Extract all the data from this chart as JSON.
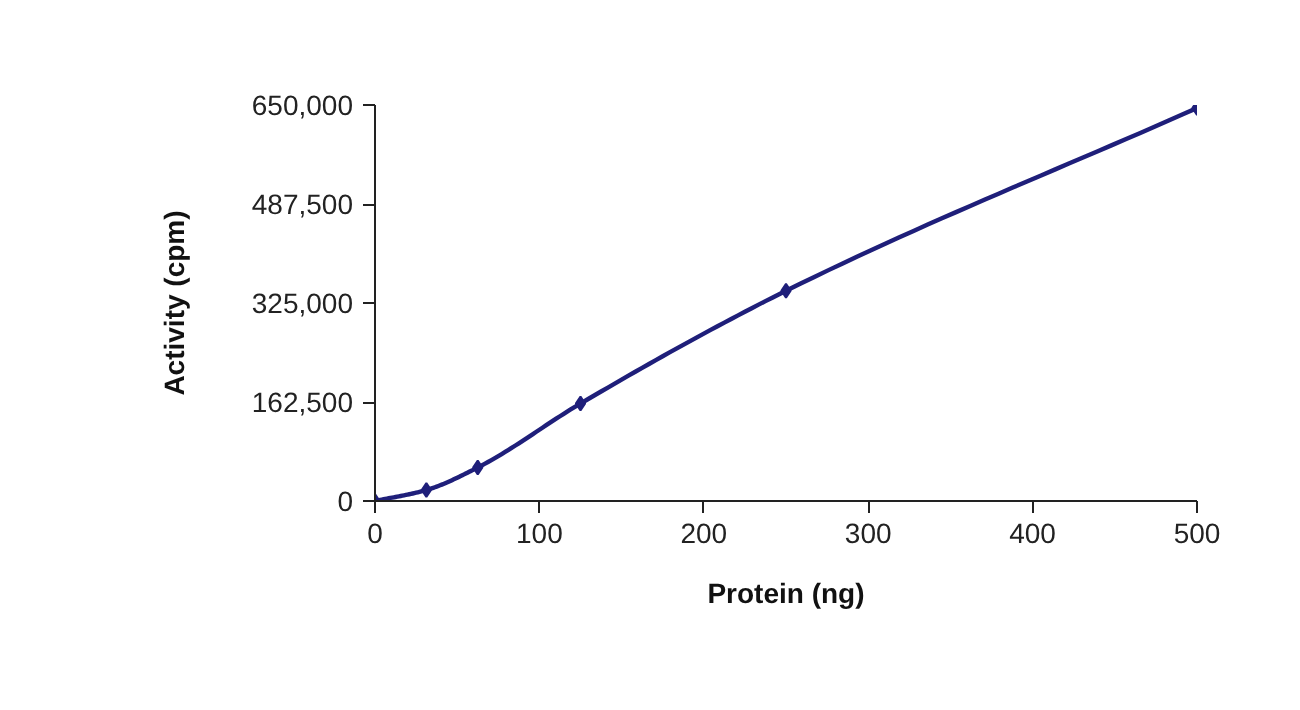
{
  "chart_data": {
    "type": "line",
    "xlabel": "Protein (ng)",
    "ylabel": "Activity (cpm)",
    "x": [
      0,
      31.25,
      62.5,
      125,
      250,
      500
    ],
    "series": [
      {
        "color": "#1f1f7a",
        "values": [
          0,
          18000,
          55000,
          160000,
          345000,
          645000
        ]
      }
    ],
    "xlim": [
      0,
      500
    ],
    "xticks": [
      0,
      100,
      200,
      300,
      400,
      500
    ],
    "ylim": [
      0,
      650000
    ],
    "yticks": [
      {
        "value": 0,
        "label": "0"
      },
      {
        "value": 162500,
        "label": "162,500"
      },
      {
        "value": 325000,
        "label": "325,000"
      },
      {
        "value": 487500,
        "label": "487,500"
      },
      {
        "value": 650000,
        "label": "650,000"
      }
    ],
    "grid": false,
    "marker": "diamond",
    "line_style": "solid"
  }
}
